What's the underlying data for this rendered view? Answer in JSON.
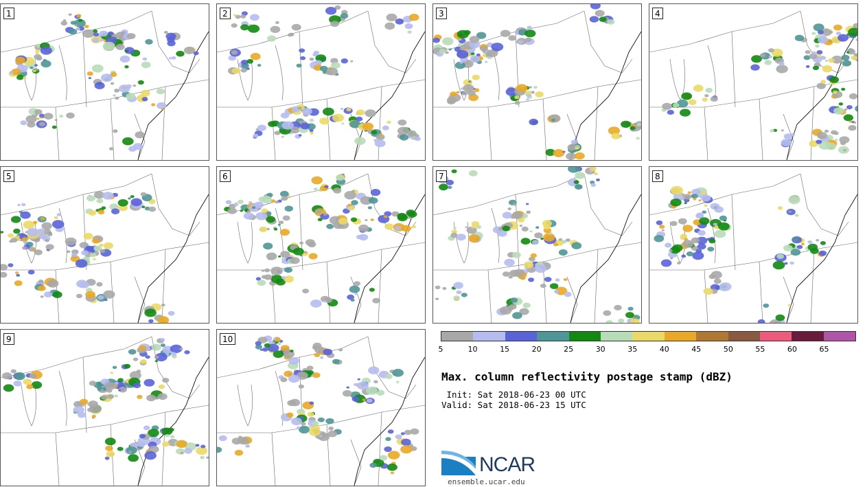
{
  "panels": [
    {
      "label": "1",
      "seed": 11
    },
    {
      "label": "2",
      "seed": 23
    },
    {
      "label": "3",
      "seed": 37
    },
    {
      "label": "4",
      "seed": 41
    },
    {
      "label": "5",
      "seed": 53
    },
    {
      "label": "6",
      "seed": 67
    },
    {
      "label": "7",
      "seed": 71
    },
    {
      "label": "8",
      "seed": 83
    },
    {
      "label": "9",
      "seed": 97
    },
    {
      "label": "10",
      "seed": 109
    }
  ],
  "colorbar": {
    "colors": [
      "#a8a8a8",
      "#b6bdee",
      "#5a63d8",
      "#4f9696",
      "#128a12",
      "#b9dcb8",
      "#ebd966",
      "#e9a825",
      "#b07833",
      "#8a5a40",
      "#ee5a7e",
      "#6a1a3a",
      "#b054a8"
    ],
    "ticks": [
      "5",
      "10",
      "15",
      "20",
      "25",
      "30",
      "35",
      "40",
      "45",
      "50",
      "55",
      "60",
      "65"
    ]
  },
  "title": "Max. column reflectivity postage stamp (dBZ)",
  "init": " Init: Sat 2018-06-23 00 UTC",
  "valid": "Valid: Sat 2018-06-23 15 UTC",
  "logo_text": "NCAR",
  "site": "ensemble.ucar.edu"
}
